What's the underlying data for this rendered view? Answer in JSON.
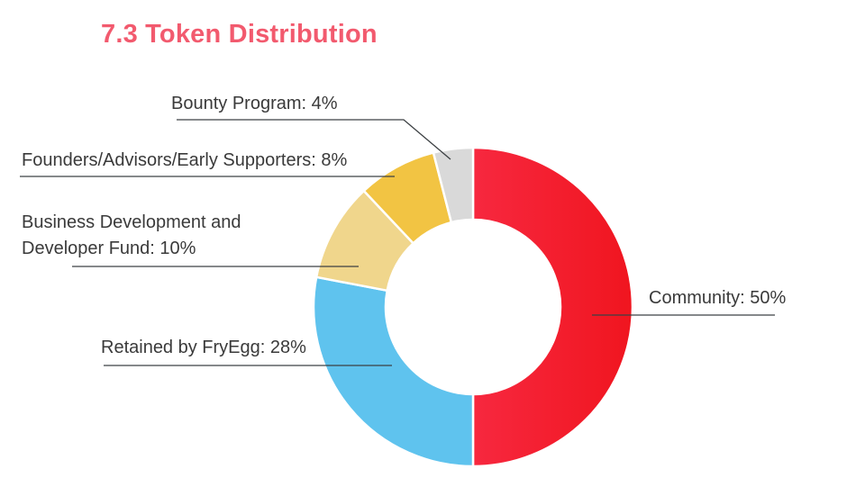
{
  "title": "7.3 Token Distribution",
  "chart_data": {
    "type": "pie",
    "donut": true,
    "categories": [
      "Community",
      "Retained by FryEgg",
      "Business Development and Developer Fund",
      "Founders/Advisors/Early Supporters",
      "Bounty Program"
    ],
    "values": [
      50,
      28,
      10,
      8,
      4
    ],
    "unit": "%",
    "colors": [
      "#f41c32",
      "#5fc3ee",
      "#f0d68c",
      "#f2c443",
      "#d9d9d9"
    ],
    "labels": [
      [
        "Community: 50%"
      ],
      [
        "Retained by FryEgg: 28%"
      ],
      [
        "Business Development and",
        "Developer Fund: 10%"
      ],
      [
        "Founders/Advisors/Early Supporters: 8%"
      ],
      [
        "Bounty Program: 4%"
      ]
    ]
  }
}
